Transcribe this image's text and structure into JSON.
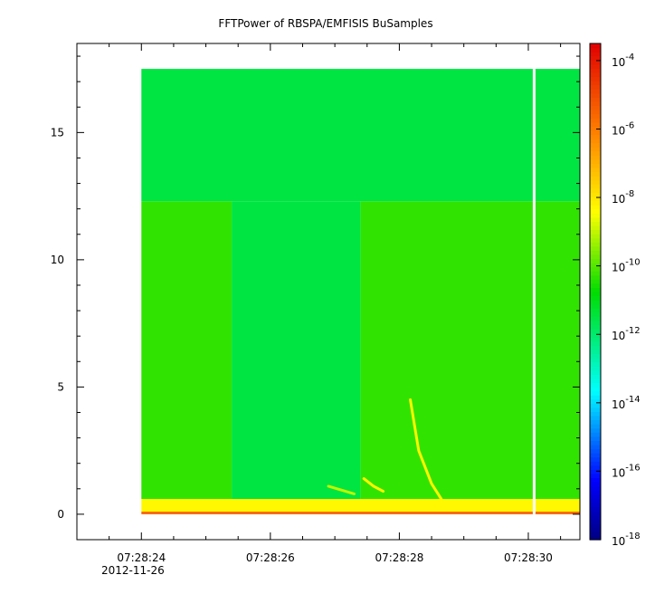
{
  "chart_data": {
    "type": "heatmap",
    "title": "FFTPower of RBSPA/EMFISIS  BuSamples",
    "xlabel": "",
    "ylabel": "",
    "x_ticks": [
      "07:28:24",
      "07:28:26",
      "07:28:28",
      "07:28:30"
    ],
    "x_tick_values_s": [
      24,
      26,
      28,
      30
    ],
    "x_date_label": "2012-11-26",
    "xlim_s": [
      23.0,
      30.8
    ],
    "data_xlim_s": [
      24.0,
      30.8
    ],
    "gap_s": 30.09,
    "y_ticks": [
      "0",
      "5",
      "10",
      "15"
    ],
    "y_tick_values": [
      0,
      5,
      10,
      15
    ],
    "ylim": [
      -1,
      18.5
    ],
    "data_ylim": [
      0,
      17.5
    ],
    "upper_band_boundary": 12.3,
    "colorbar": {
      "scale": "log",
      "range_exponent": [
        -18,
        -3.5
      ],
      "tick_bases": [
        "10",
        "10",
        "10",
        "10",
        "10",
        "10",
        "10",
        "10"
      ],
      "tick_exponents": [
        "-4",
        "-6",
        "-8",
        "-10",
        "-12",
        "-14",
        "-16",
        "-18"
      ],
      "tick_exponent_values": [
        -4,
        -6,
        -8,
        -10,
        -12,
        -14,
        -16,
        -18
      ]
    },
    "regions": [
      {
        "t_start": 24.0,
        "t_end": 25.4,
        "f_low": 0.6,
        "f_high": 12.3,
        "log_power": -10.3
      },
      {
        "t_start": 25.4,
        "t_end": 27.4,
        "f_low": 0.6,
        "f_high": 12.3,
        "log_power": -11.5
      },
      {
        "t_start": 27.4,
        "t_end": 30.8,
        "f_low": 0.6,
        "f_high": 12.3,
        "log_power": -10.3
      },
      {
        "t_start": 24.0,
        "t_end": 30.8,
        "f_low": 12.3,
        "f_high": 17.5,
        "log_power": -11.5
      },
      {
        "t_start": 24.0,
        "t_end": 30.8,
        "f_low": 0.1,
        "f_high": 0.6,
        "log_power": -8.3
      },
      {
        "t_start": 24.0,
        "t_end": 30.8,
        "f_low": 0.0,
        "f_high": 0.1,
        "log_power": -5.5
      }
    ],
    "features": [
      {
        "x": [
          28.17,
          28.3,
          28.5,
          28.65
        ],
        "y": [
          4.5,
          2.5,
          1.2,
          0.6
        ],
        "log_power": -8.3
      },
      {
        "x": [
          27.45,
          27.6,
          27.75
        ],
        "y": [
          1.4,
          1.1,
          0.9
        ],
        "log_power": -8.3
      },
      {
        "x": [
          26.9,
          27.1,
          27.3
        ],
        "y": [
          1.1,
          0.95,
          0.8
        ],
        "log_power": -9.0
      }
    ]
  }
}
